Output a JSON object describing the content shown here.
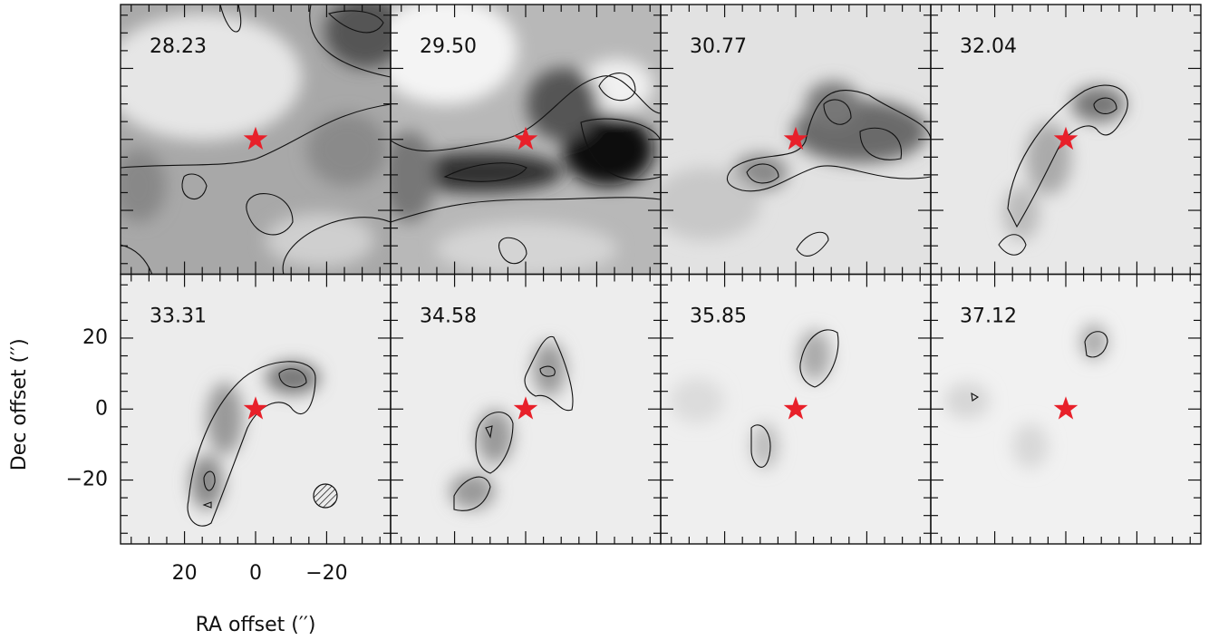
{
  "chart_data": {
    "type": "channel-map",
    "xlabel": "RA offset (′′)",
    "ylabel": "Dec offset (′′)",
    "xlim": [
      38,
      -38
    ],
    "ylim": [
      -38,
      38
    ],
    "xticks": [
      20,
      0,
      {
        "value": -20,
        "label": "−20"
      }
    ],
    "yticks": [
      {
        "value": -20,
        "label": "−20"
      },
      0,
      20
    ],
    "minor_ticks": [
      -35,
      -30,
      -25,
      -20,
      -15,
      -10,
      -5,
      0,
      5,
      10,
      15,
      20,
      25,
      30,
      35
    ],
    "star_color": "#e8202a",
    "panels": [
      {
        "label": "28.23"
      },
      {
        "label": "29.50"
      },
      {
        "label": "30.77"
      },
      {
        "label": "32.04"
      },
      {
        "label": "33.31"
      },
      {
        "label": "34.58"
      },
      {
        "label": "35.85"
      },
      {
        "label": "37.12"
      }
    ]
  }
}
